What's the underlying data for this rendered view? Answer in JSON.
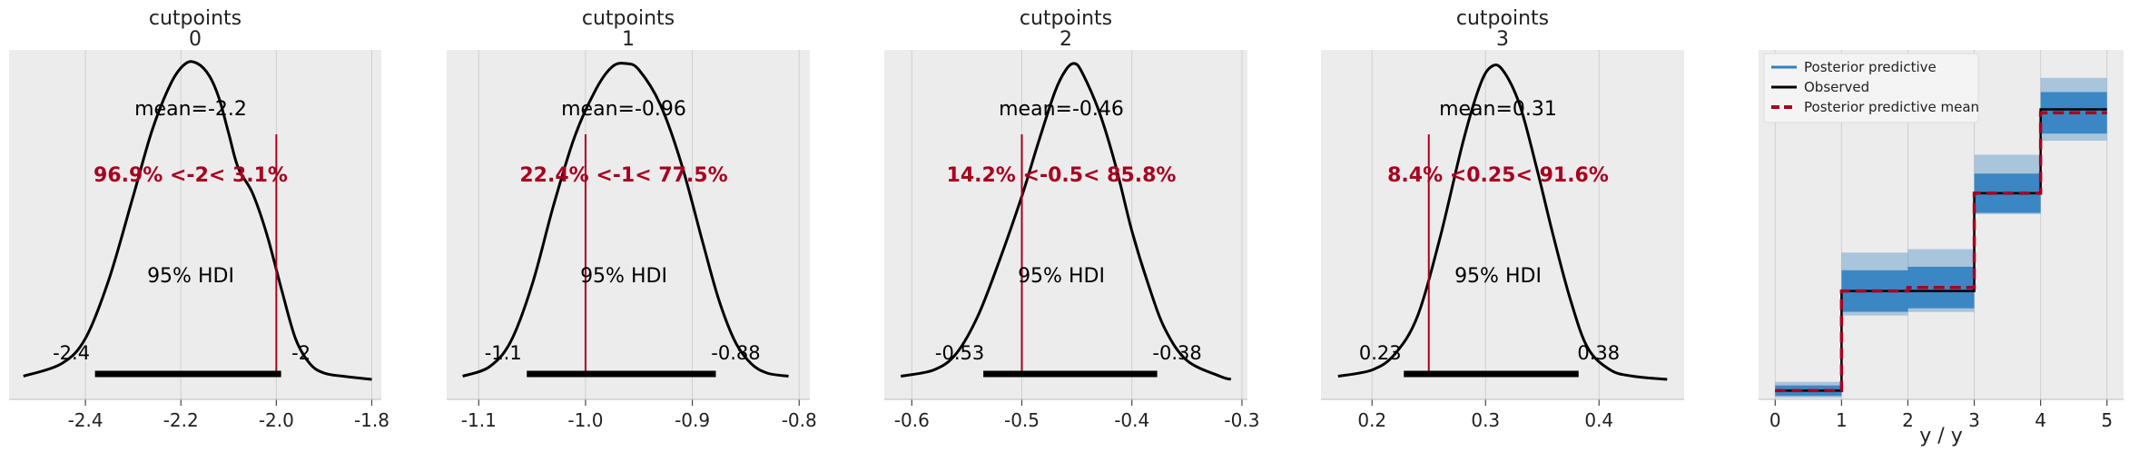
{
  "chart_data": [
    {
      "type": "line",
      "title": "cutpoints\n0",
      "title_lines": [
        "cutpoints",
        "0"
      ],
      "xlim": [
        -2.56,
        -1.78
      ],
      "xticks": [
        -2.4,
        -2.2,
        -2.0,
        -1.8
      ],
      "xtick_labels": [
        "-2.4",
        "-2.2",
        "-2.0",
        "-1.8"
      ],
      "series": [
        {
          "x": [
            -2.53,
            -2.45,
            -2.4,
            -2.35,
            -2.3,
            -2.26,
            -2.22,
            -2.19,
            -2.165,
            -2.14,
            -2.12,
            -2.1,
            -2.08,
            -2.05,
            -2.02,
            -1.99,
            -1.96,
            -1.93,
            -1.9,
            -1.86,
            -1.8
          ],
          "y": [
            0.01,
            0.05,
            0.13,
            0.32,
            0.58,
            0.79,
            0.94,
            1.0,
            1.0,
            0.96,
            0.89,
            0.78,
            0.67,
            0.59,
            0.46,
            0.29,
            0.13,
            0.05,
            0.02,
            0.01,
            0.0
          ]
        }
      ],
      "mean_label": "mean=-2.2",
      "ref_value": -2.0,
      "ref_label": "96.9% <-2< 3.1%",
      "hdi": [
        -2.38,
        -1.99
      ],
      "hdi_label": "95% HDI",
      "hdi_low_label": "-2.4",
      "hdi_high_label": "-2"
    },
    {
      "type": "line",
      "title": "cutpoints\n1",
      "title_lines": [
        "cutpoints",
        "1"
      ],
      "xlim": [
        -1.13,
        -0.79
      ],
      "xticks": [
        -1.1,
        -1.0,
        -0.9,
        -0.8
      ],
      "xtick_labels": [
        "-1.1",
        "-1.0",
        "-0.9",
        "-0.8"
      ],
      "series": [
        {
          "x": [
            -1.115,
            -1.09,
            -1.07,
            -1.05,
            -1.03,
            -1.01,
            -0.99,
            -0.975,
            -0.962,
            -0.95,
            -0.93,
            -0.91,
            -0.89,
            -0.875,
            -0.86,
            -0.845,
            -0.83,
            -0.81
          ],
          "y": [
            0.01,
            0.04,
            0.12,
            0.3,
            0.55,
            0.77,
            0.92,
            0.99,
            1.0,
            0.98,
            0.87,
            0.68,
            0.43,
            0.25,
            0.12,
            0.05,
            0.02,
            0.01
          ]
        }
      ],
      "mean_label": "mean=-0.96",
      "ref_value": -1.0,
      "ref_label": "22.4% <-1< 77.5%",
      "hdi": [
        -1.055,
        -0.878
      ],
      "hdi_label": "95% HDI",
      "hdi_low_label": "-1.1",
      "hdi_high_label": "-0.88"
    },
    {
      "type": "line",
      "title": "cutpoints\n2",
      "title_lines": [
        "cutpoints",
        "2"
      ],
      "xlim": [
        -0.625,
        -0.295
      ],
      "xticks": [
        -0.6,
        -0.5,
        -0.4,
        -0.3
      ],
      "xtick_labels": [
        "-0.6",
        "-0.5",
        "-0.4",
        "-0.3"
      ],
      "series": [
        {
          "x": [
            -0.61,
            -0.58,
            -0.56,
            -0.54,
            -0.52,
            -0.5,
            -0.485,
            -0.47,
            -0.46,
            -0.452,
            -0.445,
            -0.43,
            -0.415,
            -0.4,
            -0.385,
            -0.37,
            -0.35,
            -0.32,
            -0.31
          ],
          "y": [
            0.01,
            0.03,
            0.08,
            0.2,
            0.38,
            0.58,
            0.75,
            0.91,
            0.98,
            1.0,
            0.97,
            0.85,
            0.68,
            0.47,
            0.3,
            0.16,
            0.06,
            0.01,
            0.0
          ]
        }
      ],
      "mean_label": "mean=-0.46",
      "ref_value": -0.5,
      "ref_label": "14.2% <-0.5< 85.8%",
      "hdi": [
        -0.535,
        -0.377
      ],
      "hdi_label": "95% HDI",
      "hdi_low_label": "-0.53",
      "hdi_high_label": "-0.38"
    },
    {
      "type": "line",
      "title": "cutpoints\n3",
      "title_lines": [
        "cutpoints",
        "3"
      ],
      "xlim": [
        0.155,
        0.475
      ],
      "xticks": [
        0.2,
        0.3,
        0.4
      ],
      "xtick_labels": [
        "0.2",
        "0.3",
        "0.4"
      ],
      "series": [
        {
          "x": [
            0.17,
            0.2,
            0.22,
            0.24,
            0.26,
            0.28,
            0.295,
            0.305,
            0.315,
            0.33,
            0.345,
            0.36,
            0.375,
            0.39,
            0.41,
            0.43,
            0.46
          ],
          "y": [
            0.01,
            0.03,
            0.08,
            0.2,
            0.45,
            0.75,
            0.93,
            0.99,
            0.98,
            0.87,
            0.67,
            0.45,
            0.25,
            0.1,
            0.03,
            0.01,
            0.0
          ]
        }
      ],
      "mean_label": "mean=0.31",
      "ref_value": 0.25,
      "ref_label": "8.4% <0.25< 91.6%",
      "hdi": [
        0.228,
        0.382
      ],
      "hdi_label": "95% HDI",
      "hdi_low_label": "0.23",
      "hdi_high_label": "0.38"
    },
    {
      "type": "line",
      "xlabel": "y / y",
      "xlim": [
        -0.25,
        5.25
      ],
      "ylim": [
        0,
        1
      ],
      "xticks": [
        0,
        1,
        2,
        3,
        4,
        5
      ],
      "xtick_labels": [
        "0",
        "1",
        "2",
        "3",
        "4",
        "5"
      ],
      "legend_position": "top-left",
      "legend": [
        "Posterior predictive",
        "Observed",
        "Posterior predictive mean"
      ],
      "categories": [
        0,
        1,
        2,
        3,
        4
      ],
      "observed": [
        0.025,
        0.31,
        0.31,
        0.59,
        0.83
      ],
      "predictive_mean": [
        0.025,
        0.31,
        0.32,
        0.59,
        0.82
      ],
      "predictive_band_low": [
        0.005,
        0.24,
        0.25,
        0.53,
        0.74
      ],
      "predictive_band_high": [
        0.05,
        0.42,
        0.43,
        0.7,
        0.92
      ],
      "colors": {
        "predictive": "#2f7fc1",
        "observed": "#000000",
        "mean": "#a8001f"
      }
    }
  ],
  "colors": {
    "panel_bg": "#ececec",
    "grid": "#cfcfcf",
    "ref": "#a8001f",
    "curve": "#000000"
  }
}
